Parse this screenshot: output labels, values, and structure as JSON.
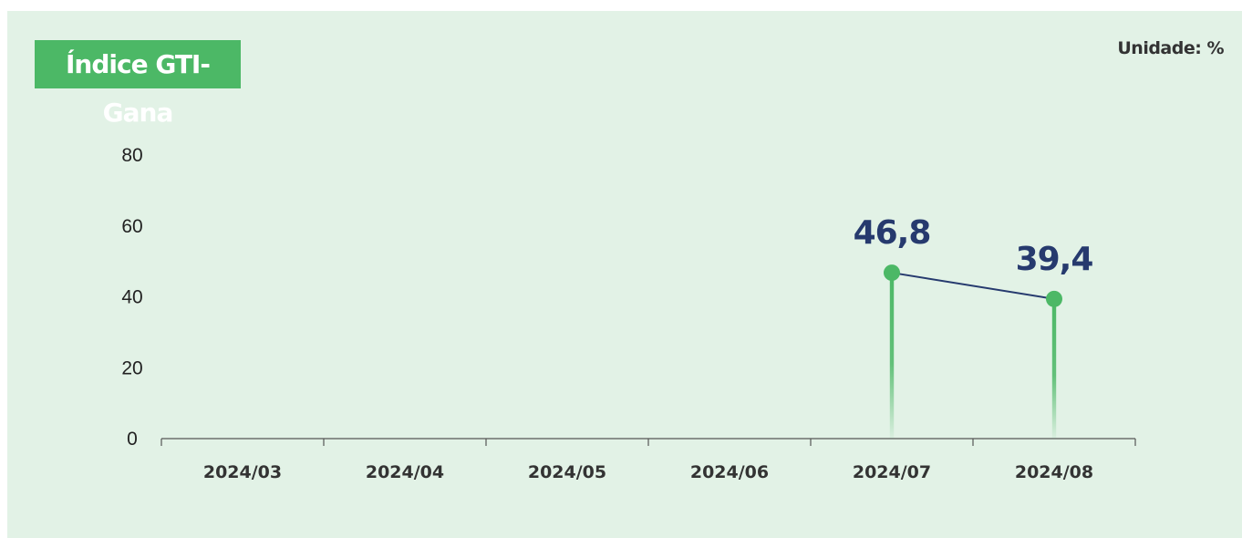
{
  "header": {
    "title": "Índice GTI-Gana",
    "unit": "Unidade: %"
  },
  "colors": {
    "background": "#e2f2e6",
    "accent": "#4cb866",
    "line": "#263a6e",
    "label": "#263a6e"
  },
  "chart_data": {
    "type": "line",
    "categories": [
      "2024/03",
      "2024/04",
      "2024/05",
      "2024/06",
      "2024/07",
      "2024/08"
    ],
    "values": [
      null,
      null,
      null,
      null,
      46.8,
      39.4
    ],
    "value_labels": [
      "",
      "",
      "",
      "",
      "46,8",
      "39,4"
    ],
    "yticks": [
      0,
      20,
      40,
      60,
      80
    ],
    "ylim": [
      0,
      80
    ],
    "title": "Índice GTI-Gana",
    "unit": "Unidade: %",
    "grid": false,
    "legend": "none"
  }
}
